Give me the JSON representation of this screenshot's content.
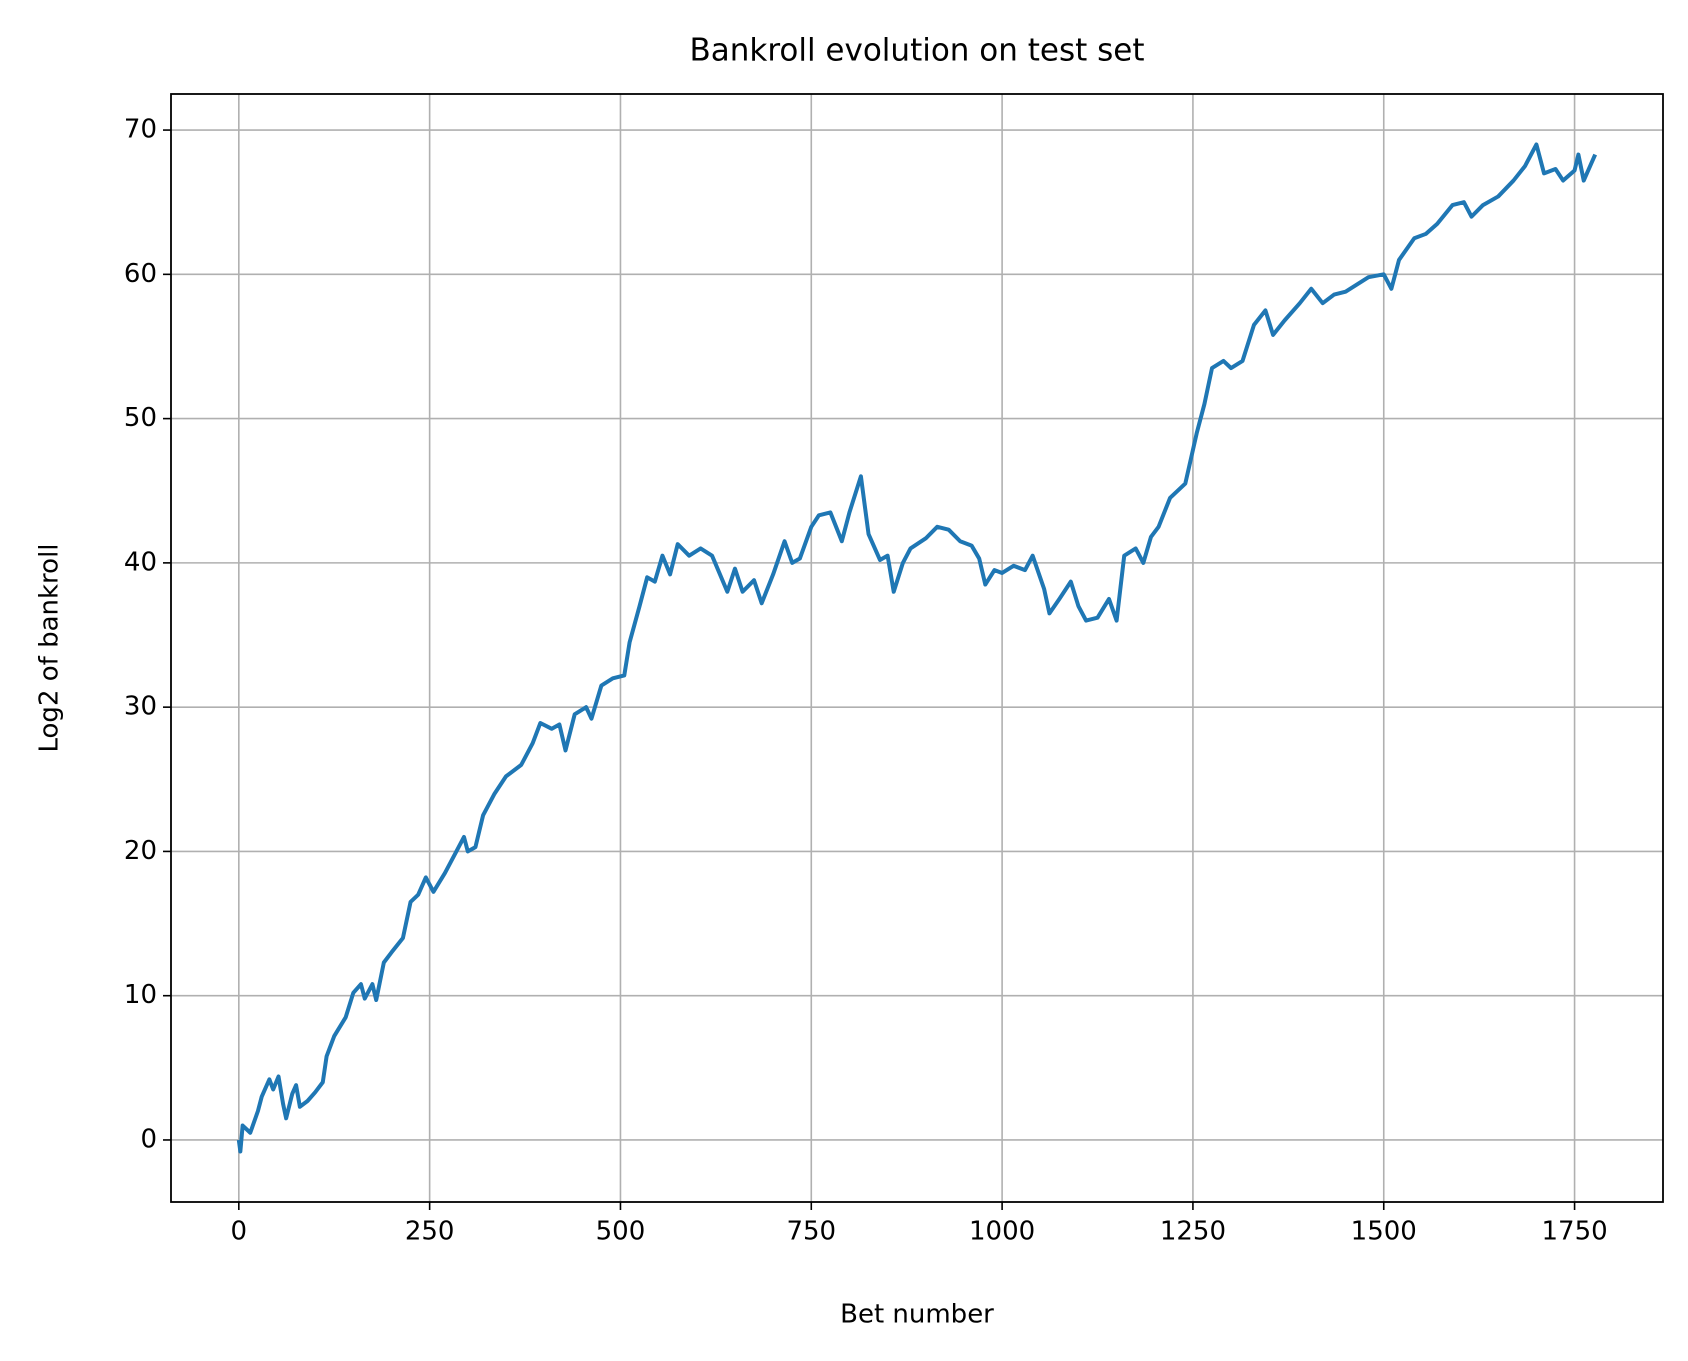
{
  "chart_data": {
    "type": "line",
    "title": "Bankroll evolution on test set",
    "xlabel": "Bet number",
    "ylabel": "Log2 of bankroll",
    "grid": true,
    "xlim": [
      -88.85,
      1865.85
    ],
    "ylim": [
      -4.3,
      72.5
    ],
    "xticks": [
      0,
      250,
      500,
      750,
      1000,
      1250,
      1500,
      1750
    ],
    "yticks": [
      0,
      10,
      20,
      30,
      40,
      50,
      60,
      70
    ],
    "x": [
      0,
      2,
      5,
      15,
      25,
      30,
      40,
      45,
      52,
      58,
      62,
      70,
      75,
      80,
      90,
      100,
      110,
      115,
      125,
      140,
      150,
      160,
      165,
      175,
      180,
      190,
      200,
      215,
      225,
      235,
      245,
      255,
      270,
      285,
      295,
      300,
      310,
      320,
      335,
      350,
      370,
      385,
      395,
      410,
      420,
      428,
      440,
      455,
      462,
      475,
      490,
      505,
      512,
      525,
      535,
      545,
      555,
      565,
      575,
      590,
      605,
      620,
      640,
      650,
      660,
      675,
      685,
      700,
      715,
      725,
      735,
      750,
      760,
      775,
      790,
      800,
      815,
      825,
      840,
      850,
      858,
      870,
      880,
      900,
      915,
      930,
      945,
      960,
      970,
      978,
      990,
      1000,
      1015,
      1030,
      1040,
      1055,
      1062,
      1075,
      1090,
      1100,
      1110,
      1125,
      1140,
      1150,
      1160,
      1175,
      1185,
      1195,
      1205,
      1220,
      1240,
      1255,
      1265,
      1275,
      1290,
      1300,
      1315,
      1330,
      1345,
      1355,
      1370,
      1390,
      1405,
      1420,
      1435,
      1450,
      1465,
      1480,
      1500,
      1510,
      1520,
      1540,
      1555,
      1570,
      1590,
      1605,
      1615,
      1630,
      1650,
      1670,
      1685,
      1700,
      1710,
      1725,
      1735,
      1750,
      1755,
      1762,
      1777
    ],
    "series": [
      {
        "name": "Log2 of bankroll",
        "color": "#1f77b4",
        "values": [
          0,
          -0.8,
          1,
          0.5,
          2,
          3,
          4.2,
          3.5,
          4.4,
          2.5,
          1.5,
          3.2,
          3.8,
          2.3,
          2.7,
          3.3,
          4,
          5.8,
          7.2,
          8.5,
          10.2,
          10.8,
          9.8,
          10.8,
          9.7,
          12.3,
          13,
          14,
          16.5,
          17,
          18.2,
          17.2,
          18.5,
          20,
          21,
          20,
          20.3,
          22.5,
          24,
          25.2,
          26,
          27.5,
          28.9,
          28.5,
          28.8,
          27,
          29.5,
          30,
          29.2,
          31.5,
          32,
          32.2,
          34.5,
          37,
          39,
          38.7,
          40.5,
          39.2,
          41.3,
          40.5,
          41,
          40.5,
          38,
          39.6,
          38,
          38.8,
          37.2,
          39.2,
          41.5,
          40,
          40.3,
          42.5,
          43.3,
          43.5,
          41.5,
          43.5,
          46,
          42,
          40.2,
          40.5,
          38,
          40,
          41,
          41.7,
          42.5,
          42.3,
          41.5,
          41.2,
          40.3,
          38.5,
          39.5,
          39.3,
          39.8,
          39.5,
          40.5,
          38.2,
          36.5,
          37.5,
          38.7,
          37,
          36,
          36.2,
          37.5,
          36,
          40.5,
          41,
          40,
          41.8,
          42.5,
          44.5,
          45.5,
          49,
          51,
          53.5,
          54,
          53.5,
          54,
          56.5,
          57.5,
          55.8,
          56.8,
          58,
          59,
          58,
          58.6,
          58.8,
          59.3,
          59.8,
          60,
          59,
          61,
          62.5,
          62.8,
          63.5,
          64.8,
          65,
          64,
          64.8,
          65.4,
          66.5,
          67.5,
          69,
          67,
          67.3,
          66.5,
          67.2,
          68.3,
          66.5,
          68.3
        ]
      }
    ]
  }
}
